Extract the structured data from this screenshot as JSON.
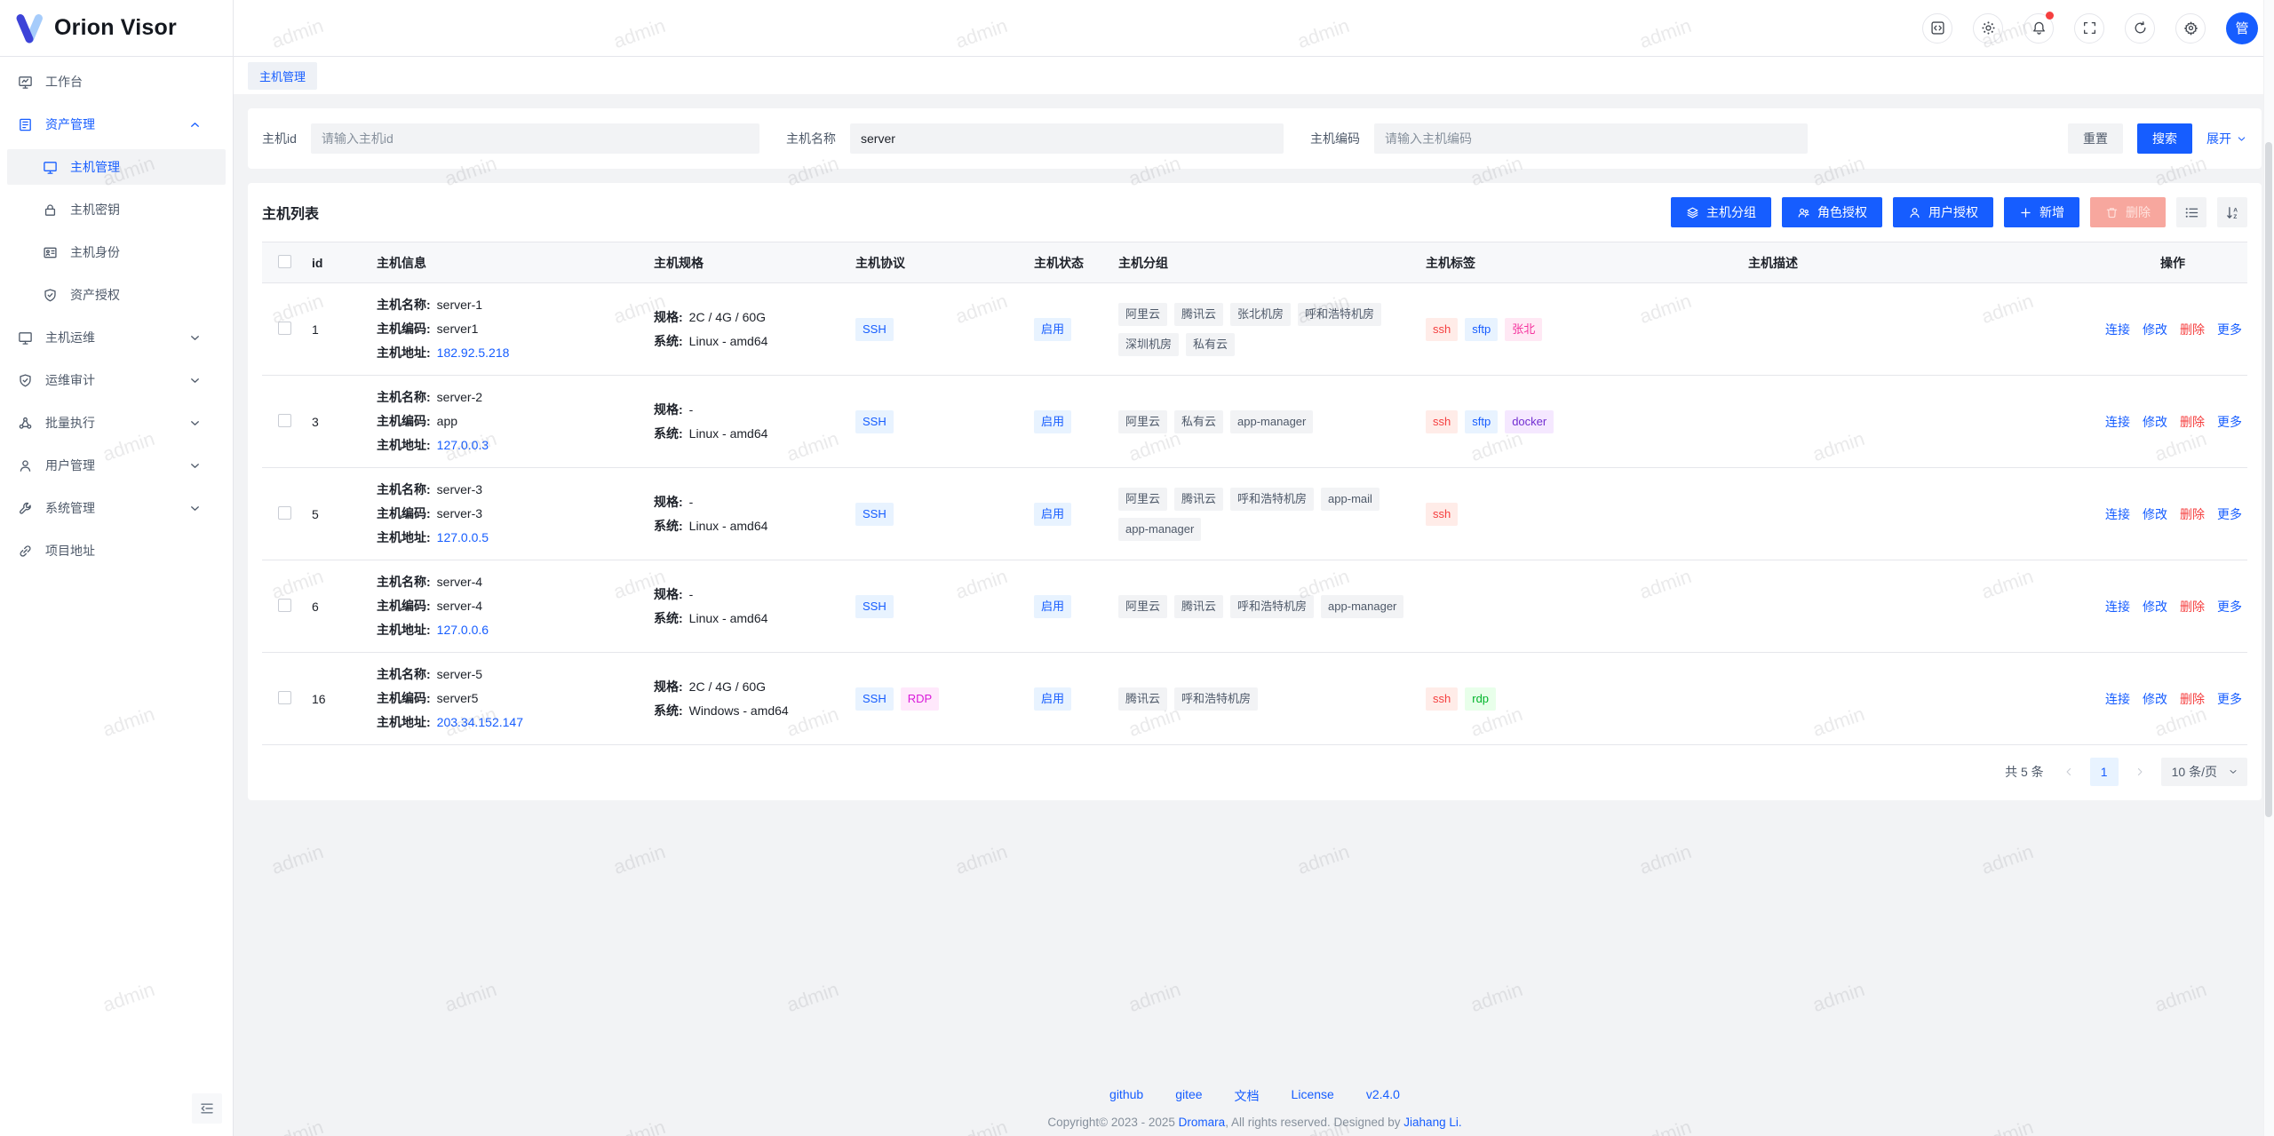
{
  "app": {
    "name": "Orion Visor",
    "avatar_text": "管"
  },
  "topbar": {
    "icons": [
      "code-icon",
      "theme-icon",
      "notifications-icon",
      "fullscreen-icon",
      "refresh-icon",
      "settings-icon"
    ],
    "has_notification_dot": true
  },
  "sidebar": {
    "items": [
      {
        "label": "工作台",
        "icon": "workbench-icon"
      },
      {
        "label": "资产管理",
        "icon": "asset-icon",
        "expanded": true,
        "children": [
          {
            "label": "主机管理",
            "icon": "host-monitor-icon",
            "active": true
          },
          {
            "label": "主机密钥",
            "icon": "lock-icon"
          },
          {
            "label": "主机身份",
            "icon": "id-card-icon"
          },
          {
            "label": "资产授权",
            "icon": "shield-check-icon"
          }
        ]
      },
      {
        "label": "主机运维",
        "icon": "ops-monitor-icon",
        "collapsible": true
      },
      {
        "label": "运维审计",
        "icon": "audit-shield-icon",
        "collapsible": true
      },
      {
        "label": "批量执行",
        "icon": "cluster-icon",
        "collapsible": true
      },
      {
        "label": "用户管理",
        "icon": "user-icon",
        "collapsible": true
      },
      {
        "label": "系统管理",
        "icon": "wrench-icon",
        "collapsible": true
      },
      {
        "label": "项目地址",
        "icon": "link-icon"
      }
    ]
  },
  "tabs": [
    {
      "label": "主机管理",
      "active": true
    }
  ],
  "search": {
    "fields": [
      {
        "label": "主机id",
        "placeholder": "请输入主机id",
        "value": ""
      },
      {
        "label": "主机名称",
        "value": "server"
      },
      {
        "label": "主机编码",
        "placeholder": "请输入主机编码",
        "value": ""
      }
    ],
    "reset_label": "重置",
    "search_label": "搜索",
    "expand_label": "展开"
  },
  "list": {
    "title": "主机列表",
    "toolbar": {
      "group": "主机分组",
      "role_grant": "角色授权",
      "user_grant": "用户授权",
      "create": "新增",
      "delete": "删除"
    },
    "columns": [
      "id",
      "主机信息",
      "主机规格",
      "主机协议",
      "主机状态",
      "主机分组",
      "主机标签",
      "主机描述",
      "操作"
    ],
    "row_labels": {
      "name": "主机名称:",
      "code": "主机编码:",
      "address": "主机地址:",
      "spec": "规格:",
      "system": "系统:"
    },
    "actions": [
      "连接",
      "修改",
      "删除",
      "更多"
    ],
    "rows": [
      {
        "id": "1",
        "name": "server-1",
        "code": "server1",
        "address": "182.92.5.218",
        "spec": "2C / 4G / 60G",
        "system": "Linux - amd64",
        "protocols": [
          {
            "text": "SSH",
            "color": "blue"
          }
        ],
        "status": "启用",
        "groups": [
          "阿里云",
          "腾讯云",
          "张北机房",
          "呼和浩特机房",
          "深圳机房",
          "私有云"
        ],
        "tags": [
          {
            "text": "ssh",
            "color": "red"
          },
          {
            "text": "sftp",
            "color": "blue"
          },
          {
            "text": "张北",
            "color": "magenta"
          }
        ],
        "description": ""
      },
      {
        "id": "3",
        "name": "server-2",
        "code": "app",
        "address": "127.0.0.3",
        "spec": "-",
        "system": "Linux - amd64",
        "protocols": [
          {
            "text": "SSH",
            "color": "blue"
          }
        ],
        "status": "启用",
        "groups": [
          "阿里云",
          "私有云",
          "app-manager"
        ],
        "tags": [
          {
            "text": "ssh",
            "color": "red"
          },
          {
            "text": "sftp",
            "color": "blue"
          },
          {
            "text": "docker",
            "color": "purple"
          }
        ],
        "description": ""
      },
      {
        "id": "5",
        "name": "server-3",
        "code": "server-3",
        "address": "127.0.0.5",
        "spec": "-",
        "system": "Linux - amd64",
        "protocols": [
          {
            "text": "SSH",
            "color": "blue"
          }
        ],
        "status": "启用",
        "groups": [
          "阿里云",
          "腾讯云",
          "呼和浩特机房",
          "app-mail",
          "app-manager"
        ],
        "tags": [
          {
            "text": "ssh",
            "color": "red"
          }
        ],
        "description": ""
      },
      {
        "id": "6",
        "name": "server-4",
        "code": "server-4",
        "address": "127.0.0.6",
        "spec": "-",
        "system": "Linux - amd64",
        "protocols": [
          {
            "text": "SSH",
            "color": "blue"
          }
        ],
        "status": "启用",
        "groups": [
          "阿里云",
          "腾讯云",
          "呼和浩特机房",
          "app-manager"
        ],
        "tags": [],
        "description": ""
      },
      {
        "id": "16",
        "name": "server-5",
        "code": "server5",
        "address": "203.34.152.147",
        "spec": "2C / 4G / 60G",
        "system": "Windows - amd64",
        "protocols": [
          {
            "text": "SSH",
            "color": "blue"
          },
          {
            "text": "RDP",
            "color": "pinkpurple"
          }
        ],
        "status": "启用",
        "groups": [
          "腾讯云",
          "呼和浩特机房"
        ],
        "tags": [
          {
            "text": "ssh",
            "color": "red"
          },
          {
            "text": "rdp",
            "color": "green"
          }
        ],
        "description": ""
      }
    ],
    "pagination": {
      "total": "共 5 条",
      "page": "1",
      "page_size": "10 条/页"
    }
  },
  "footer": {
    "links": [
      "github",
      "gitee",
      "文档",
      "License",
      "v2.4.0"
    ],
    "copyright_prefix": "Copyright© 2023 - 2025 ",
    "copyright_brand": "Dromara",
    "copyright_middle": ", All rights reserved. Designed by ",
    "copyright_author": "Jiahang Li."
  },
  "watermark": {
    "text": "admin"
  },
  "colors": {
    "primary": "#165dff",
    "danger": "#f53f3f",
    "success": "#00b42a",
    "text": "#1d2129",
    "text_secondary": "#4e5969",
    "border": "#e5e6eb",
    "fill": "#f2f3f5"
  }
}
